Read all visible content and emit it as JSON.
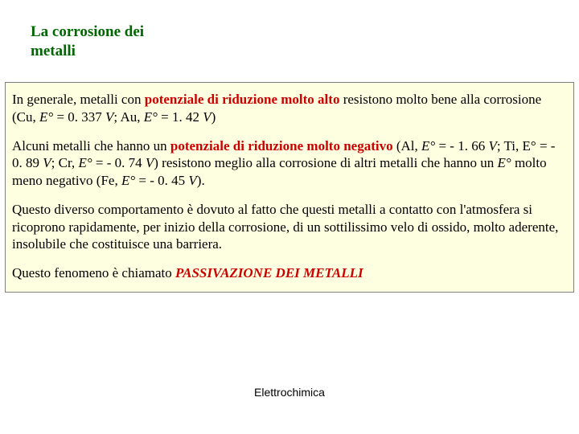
{
  "title": {
    "line1": "La corrosione dei",
    "line2": "metalli",
    "color": "#006600",
    "fontsize": 19,
    "font_weight": "bold"
  },
  "content_box": {
    "background_color": "#feffe0",
    "border_color": "#808080"
  },
  "para1": {
    "t1": "In generale, metalli con ",
    "t2": "potenziale di riduzione molto alto",
    "t3": " resistono molto bene alla corrosione (Cu, ",
    "t4": "E°",
    "t5": " = 0. 337 ",
    "t6": "V",
    "t7": ";  Au, ",
    "t8": "E°",
    "t9": " = 1. 42 ",
    "t10": "V",
    "t11": ")"
  },
  "para2": {
    "t1": "Alcuni metalli che hanno  un ",
    "t2": "potenziale di riduzione  molto negativo",
    "t3": "  (Al, ",
    "t4": "E°",
    "t5": " = - 1. 66 ",
    "t6": "V",
    "t7": "; Ti, E° = - 0. 89 ",
    "t8": "V",
    "t9": "; Cr, ",
    "t10": "E°",
    "t11": " = - 0. 74 ",
    "t12": "V",
    "t13": ") resistono meglio alla corrosione di altri metalli che hanno un ",
    "t14": "E°",
    "t15": " molto meno negativo (Fe, ",
    "t16": "E°",
    "t17": " = - 0. 45 ",
    "t18": "V",
    "t19": ")."
  },
  "para3": {
    "t1": "Questo diverso comportamento è dovuto al fatto che questi metalli a contatto con l'atmosfera si ricoprono rapidamente, per inizio della corrosione, di un sottilissimo velo di ossido, molto aderente, insolubile che costituisce una barriera."
  },
  "para4": {
    "t1": "Questo fenomeno è chiamato ",
    "t2": "PASSIVAZIONE DEI METALLI"
  },
  "footer": {
    "text": "Elettrochimica",
    "fontsize": 14
  },
  "colors": {
    "text_black": "#000000",
    "highlight_red": "#cc0000",
    "background": "#ffffff"
  }
}
